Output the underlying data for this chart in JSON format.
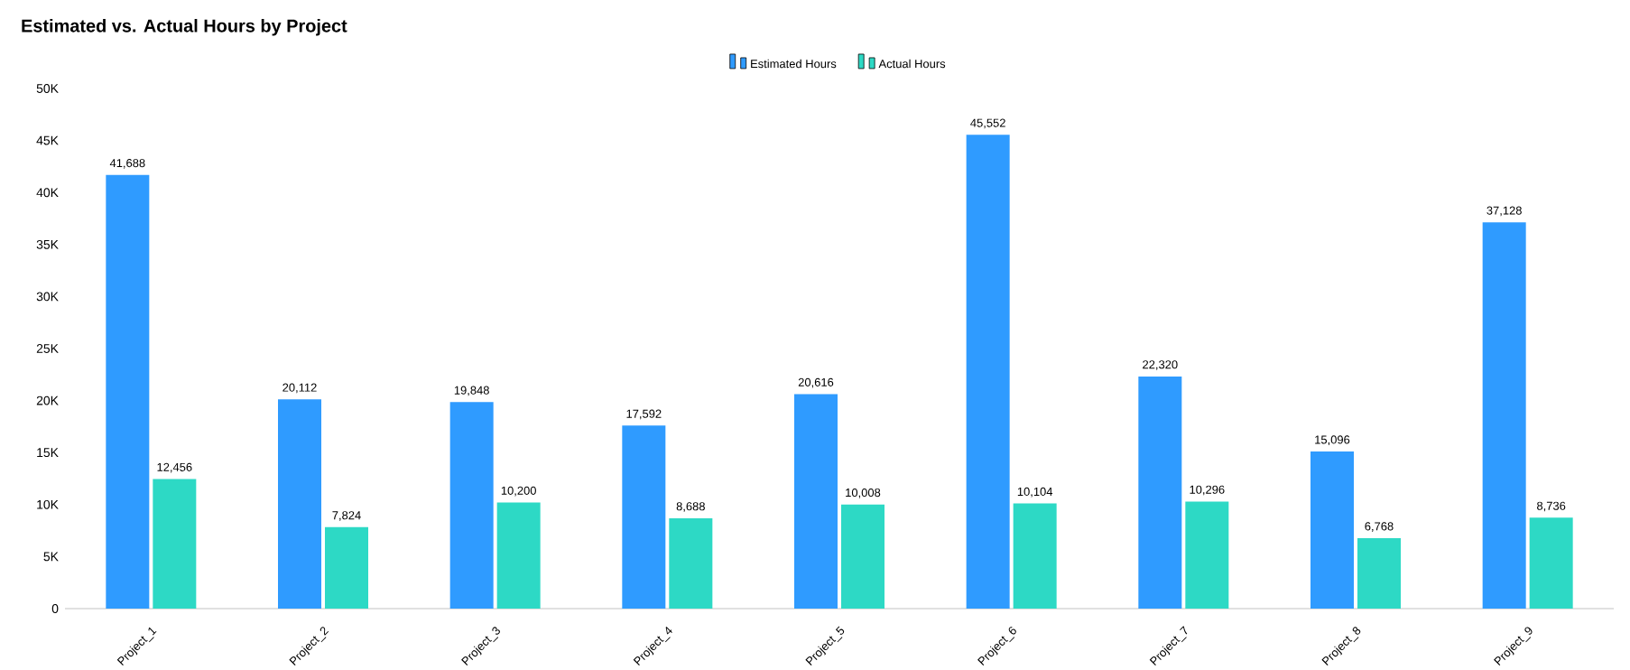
{
  "chart_data": {
    "type": "bar",
    "title": "Estimated vs. Actual Hours by Project",
    "categories": [
      "Project_1",
      "Project_2",
      "Project_3",
      "Project_4",
      "Project_5",
      "Project_6",
      "Project_7",
      "Project_8",
      "Project_9"
    ],
    "series": [
      {
        "name": "Estimated Hours",
        "color": "#2f9bff",
        "values": [
          41688,
          20112,
          19848,
          17592,
          20616,
          45552,
          22320,
          15096,
          37128
        ],
        "value_labels": [
          "41,688",
          "20,112",
          "19,848",
          "17,592",
          "20,616",
          "45,552",
          "22,320",
          "15,096",
          "37,128"
        ]
      },
      {
        "name": "Actual Hours",
        "color": "#2dd9c5",
        "values": [
          12456,
          7824,
          10200,
          8688,
          10008,
          10104,
          10296,
          6768,
          8736
        ],
        "value_labels": [
          "12,456",
          "7,824",
          "10,200",
          "8,688",
          "10,008",
          "10,104",
          "10,296",
          "6,768",
          "8,736"
        ]
      }
    ],
    "ylim": [
      0,
      50000
    ],
    "yticks": [
      0,
      {
        "value": 5000,
        "label": "5K"
      },
      {
        "value": 10000,
        "label": "10K"
      },
      {
        "value": 15000,
        "label": "15K"
      },
      {
        "value": 20000,
        "label": "20K"
      },
      {
        "value": 25000,
        "label": "25K"
      },
      {
        "value": 30000,
        "label": "30K"
      },
      {
        "value": 35000,
        "label": "35K"
      },
      {
        "value": 40000,
        "label": "40K"
      },
      {
        "value": 45000,
        "label": "45K"
      },
      {
        "value": 50000,
        "label": "50K"
      }
    ],
    "grid": false,
    "legend": "top"
  }
}
